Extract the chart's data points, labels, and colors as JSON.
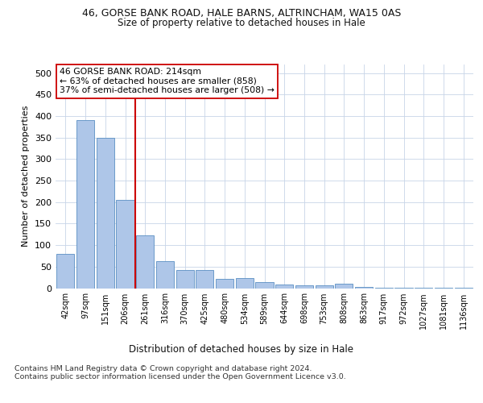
{
  "title1": "46, GORSE BANK ROAD, HALE BARNS, ALTRINCHAM, WA15 0AS",
  "title2": "Size of property relative to detached houses in Hale",
  "xlabel": "Distribution of detached houses by size in Hale",
  "ylabel": "Number of detached properties",
  "bin_labels": [
    "42sqm",
    "97sqm",
    "151sqm",
    "206sqm",
    "261sqm",
    "316sqm",
    "370sqm",
    "425sqm",
    "480sqm",
    "534sqm",
    "589sqm",
    "644sqm",
    "698sqm",
    "753sqm",
    "808sqm",
    "863sqm",
    "917sqm",
    "972sqm",
    "1027sqm",
    "1081sqm",
    "1136sqm"
  ],
  "bar_values": [
    79,
    390,
    350,
    205,
    122,
    63,
    43,
    43,
    21,
    23,
    14,
    8,
    7,
    6,
    10,
    3,
    1,
    1,
    1,
    1,
    1
  ],
  "bar_color": "#aec6e8",
  "bar_edge_color": "#5a8fc2",
  "property_line_color": "#cc0000",
  "annotation_text": "46 GORSE BANK ROAD: 214sqm\n← 63% of detached houses are smaller (858)\n37% of semi-detached houses are larger (508) →",
  "annotation_box_color": "#ffffff",
  "annotation_box_edge": "#cc0000",
  "footer_text": "Contains HM Land Registry data © Crown copyright and database right 2024.\nContains public sector information licensed under the Open Government Licence v3.0.",
  "ylim": [
    0,
    520
  ],
  "yticks": [
    0,
    50,
    100,
    150,
    200,
    250,
    300,
    350,
    400,
    450,
    500
  ],
  "background_color": "#ffffff",
  "grid_color": "#c8d4e8"
}
